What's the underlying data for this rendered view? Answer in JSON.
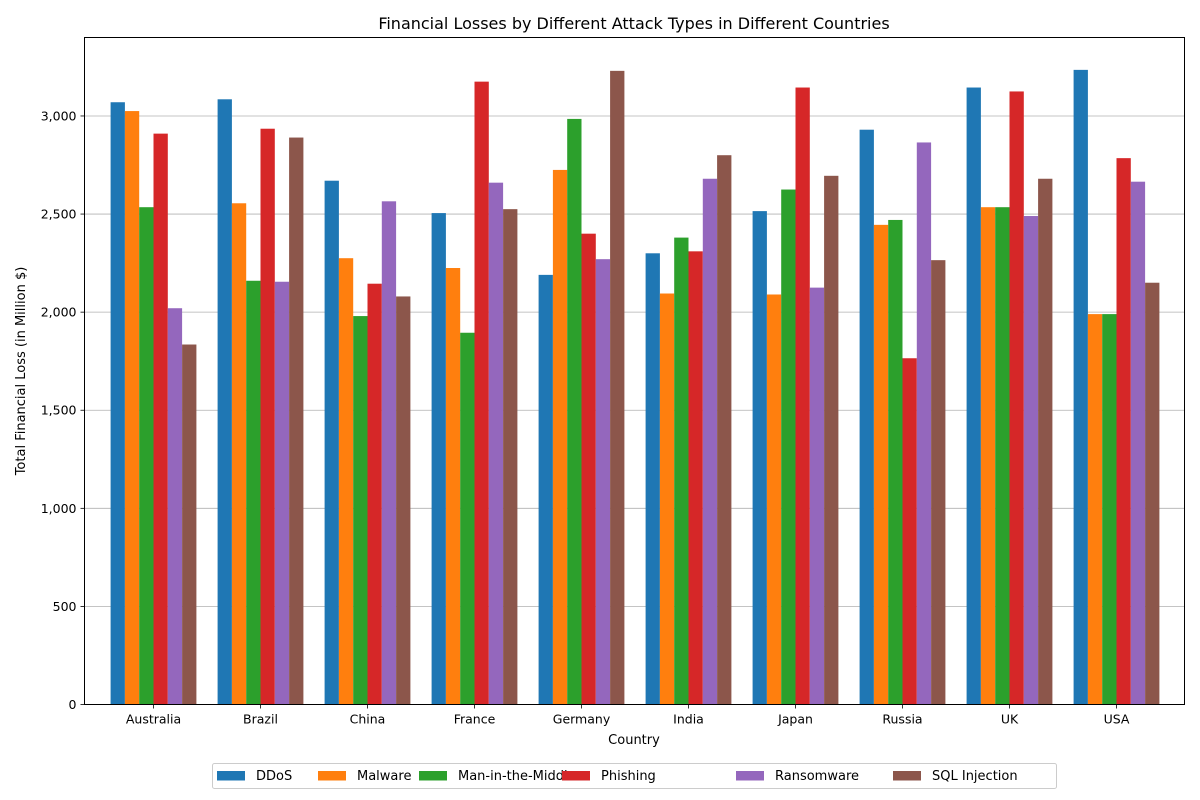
{
  "chart_data": {
    "type": "bar",
    "title": "Financial Losses by Different Attack Types in Different Countries",
    "xlabel": "Country",
    "ylabel": "Total Financial Loss (in Million $)",
    "ylim": [
      0,
      3400
    ],
    "yticks": [
      0,
      500,
      1000,
      1500,
      2000,
      2500,
      3000
    ],
    "ytick_labels": [
      "0",
      "500",
      "1,000",
      "1,500",
      "2,000",
      "2,500",
      "3,000"
    ],
    "grid": "y",
    "legend_placement": "bottom-center",
    "categories": [
      "Australia",
      "Brazil",
      "China",
      "France",
      "Germany",
      "India",
      "Japan",
      "Russia",
      "UK",
      "USA"
    ],
    "series": [
      {
        "name": "DDoS",
        "color": "#1f77b4",
        "values": [
          3070,
          3085,
          2670,
          2505,
          2190,
          2300,
          2515,
          2930,
          3145,
          3235
        ]
      },
      {
        "name": "Malware",
        "color": "#ff7f0e",
        "values": [
          3025,
          2555,
          2275,
          2225,
          2725,
          2095,
          2090,
          2445,
          2535,
          1990
        ]
      },
      {
        "name": "Man-in-the-Middle",
        "color": "#2ca02c",
        "values": [
          2535,
          2160,
          1980,
          1895,
          2985,
          2380,
          2625,
          2470,
          2535,
          1990
        ]
      },
      {
        "name": "Phishing",
        "color": "#d62728",
        "values": [
          2910,
          2935,
          2145,
          3175,
          2400,
          2310,
          3145,
          1765,
          3125,
          2785
        ]
      },
      {
        "name": "Ransomware",
        "color": "#9467bd",
        "values": [
          2020,
          2155,
          2565,
          2660,
          2270,
          2680,
          2125,
          2865,
          2490,
          2665
        ]
      },
      {
        "name": "SQL Injection",
        "color": "#8c564b",
        "values": [
          1835,
          2890,
          2080,
          2525,
          3230,
          2800,
          2695,
          2265,
          2680,
          2150
        ]
      }
    ]
  }
}
